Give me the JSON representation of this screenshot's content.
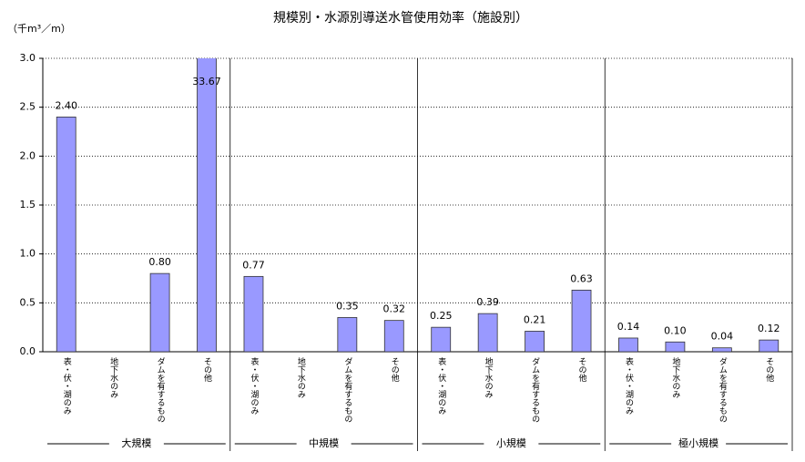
{
  "chart_data": {
    "type": "bar",
    "title": "規模別・水源別導送水管使用効率（施設別）",
    "y_label": "（千m³／m）",
    "groups": [
      "大規模",
      "中規模",
      "小規模",
      "極小規模"
    ],
    "categories": [
      "表・伏・湖のみ",
      "地下水のみ",
      "ダムを有するもの",
      "その他",
      "表・伏・湖のみ",
      "地下水のみ",
      "ダムを有するもの",
      "その他",
      "表・伏・湖のみ",
      "地下水のみ",
      "ダムを有するもの",
      "その他",
      "表・伏・湖のみ",
      "地下水のみ",
      "ダムを有するもの",
      "その他"
    ],
    "values": [
      2.4,
      null,
      0.8,
      33.67,
      0.77,
      null,
      0.35,
      0.32,
      0.25,
      0.39,
      0.21,
      0.63,
      0.14,
      0.1,
      0.04,
      0.12
    ],
    "value_labels": [
      "2.40",
      null,
      "0.80",
      "33.67",
      "0.77",
      null,
      "0.35",
      "0.32",
      "0.25",
      "0.39",
      "0.21",
      "0.63",
      "0.14",
      "0.10",
      "0.04",
      "0.12"
    ],
    "color": "#9999ff",
    "ylim": [
      0,
      3
    ],
    "yticks": [
      {
        "value": 0,
        "label": "0.0"
      },
      {
        "value": 0.5,
        "label": "0.5"
      },
      {
        "value": 1,
        "label": "1.0"
      },
      {
        "value": 1.5,
        "label": "1.5"
      },
      {
        "value": 2,
        "label": "2.0"
      },
      {
        "value": 2.5,
        "label": "2.5"
      },
      {
        "value": 3,
        "label": "3.0"
      }
    ],
    "grid": true
  }
}
